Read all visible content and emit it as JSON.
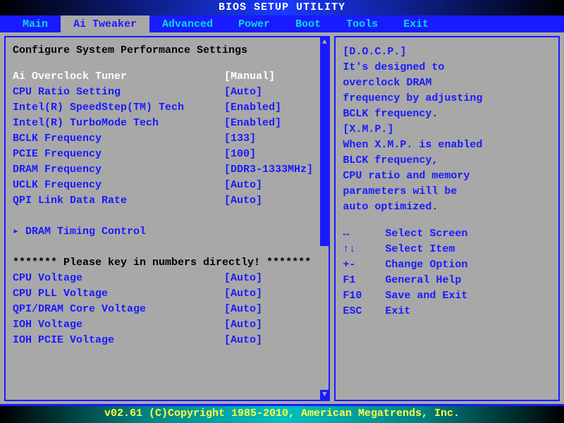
{
  "colors": {
    "blue": "#1a1aff",
    "cyan": "#00e0e0",
    "grey": "#a8a8a8",
    "white": "#ffffff",
    "black": "#000000",
    "yellow": "#ffff40"
  },
  "title": "BIOS SETUP UTILITY",
  "menu": {
    "items": [
      "Main",
      "Ai Tweaker",
      "Advanced",
      "Power",
      "Boot",
      "Tools",
      "Exit"
    ],
    "active_index": 1
  },
  "left": {
    "heading": "Configure System Performance Settings",
    "rows": [
      {
        "label": "Ai Overclock Tuner",
        "value": "[Manual]",
        "selected": true
      },
      {
        "label": "CPU Ratio Setting",
        "value": "[Auto]"
      },
      {
        "label": "Intel(R) SpeedStep(TM) Tech",
        "value": "[Enabled]"
      },
      {
        "label": "Intel(R) TurboMode Tech",
        "value": "[Enabled]"
      },
      {
        "label": "BCLK Frequency",
        "value": "[133]"
      },
      {
        "label": "PCIE Frequency",
        "value": "[100]"
      },
      {
        "label": "DRAM Frequency",
        "value": "[DDR3-1333MHz]"
      },
      {
        "label": "UCLK Frequency",
        "value": "[Auto]"
      },
      {
        "label": "QPI Link Data Rate",
        "value": "[Auto]"
      }
    ],
    "submenu": "▸ DRAM Timing Control",
    "note": "******* Please key in numbers directly! *******",
    "rows2": [
      {
        "label": "CPU Voltage",
        "value": "[Auto]"
      },
      {
        "label": "CPU PLL Voltage",
        "value": "[Auto]"
      },
      {
        "label": "QPI/DRAM Core Voltage",
        "value": "[Auto]"
      },
      {
        "label": "IOH Voltage",
        "value": "[Auto]"
      },
      {
        "label": "IOH PCIE Voltage",
        "value": "[Auto]"
      }
    ],
    "scroll": {
      "thumb_start_pct": 0,
      "thumb_height_pct": 58,
      "gap_start_pct": 58
    }
  },
  "right": {
    "help_lines": [
      "[D.O.C.P.]",
      "It's designed to",
      "overclock DRAM",
      "frequency by adjusting",
      "BCLK frequency.",
      "[X.M.P.]",
      "When X.M.P. is enabled",
      "BLCK frequency,",
      "CPU ratio and memory",
      "parameters will be",
      "auto optimized."
    ],
    "nav": [
      {
        "key": "↔",
        "label": "Select Screen"
      },
      {
        "key": "↑↓",
        "label": "Select Item"
      },
      {
        "key": "+-",
        "label": "Change Option"
      },
      {
        "key": "F1",
        "label": "General Help"
      },
      {
        "key": "F10",
        "label": "Save and Exit"
      },
      {
        "key": "ESC",
        "label": "Exit"
      }
    ]
  },
  "footer": "v02.61 (C)Copyright 1985-2010, American Megatrends, Inc."
}
